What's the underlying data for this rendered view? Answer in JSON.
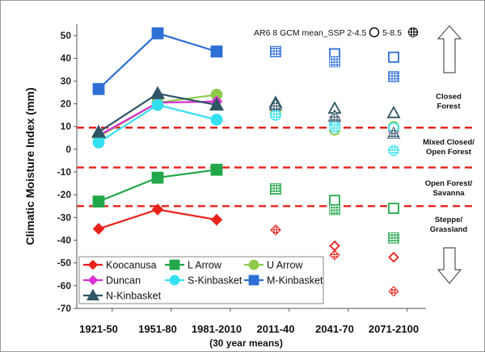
{
  "chart_data": {
    "type": "line",
    "ylabel": "Climatic  Moisture  Index  (mm)",
    "xsublabel": "(30 year means)",
    "categories": [
      "1921-50",
      "1951-80",
      "1981-2010",
      "2011-40",
      "2041-70",
      "2071-2100"
    ],
    "ylim": [
      -70,
      55
    ],
    "yticks": [
      -70,
      -60,
      -50,
      -40,
      -30,
      -20,
      -10,
      0,
      10,
      20,
      30,
      40,
      50
    ],
    "thresholds": [
      9.5,
      -8,
      -25
    ],
    "zones": [
      {
        "lines": [
          "Closed",
          "Forest"
        ],
        "y": 21
      },
      {
        "lines": [
          "Mixed Closed/",
          "Open Forest"
        ],
        "y": 1
      },
      {
        "lines": [
          "Open Forest/",
          "Savanna"
        ],
        "y": -17
      },
      {
        "lines": [
          "Steppe/",
          "Grassland"
        ],
        "y": -33
      }
    ],
    "scenario_text": {
      "prefix": "AR6 8 GCM mean_SSP 2-4.5",
      "second": "5-8.5"
    },
    "series": [
      {
        "name": "Koocanusa",
        "color": "#e8221b",
        "marker": "diamond",
        "observed": [
          -35,
          -26.5,
          -31
        ],
        "ssp245": [
          null,
          null,
          null,
          -35.5,
          -42.5,
          -47.5
        ],
        "ssp585": [
          null,
          null,
          null,
          -35.5,
          -46.5,
          -62.5
        ]
      },
      {
        "name": "L Arrow",
        "color": "#22a84a",
        "marker": "square",
        "observed": [
          -23,
          -12.5,
          -9
        ],
        "ssp245": [
          null,
          null,
          null,
          -17.5,
          -22.5,
          -26
        ],
        "ssp585": [
          null,
          null,
          null,
          -17.5,
          -26.5,
          -39
        ]
      },
      {
        "name": "U Arrow",
        "color": "#8fca4a",
        "marker": "circle",
        "observed": [
          5.5,
          20.5,
          24
        ],
        "ssp245": [
          null,
          null,
          null,
          16.5,
          8.5,
          10
        ],
        "ssp585": [
          null,
          null,
          null,
          16.5,
          10,
          8.5
        ]
      },
      {
        "name": "Duncan",
        "color": "#d930d2",
        "marker": "diamond",
        "observed": [
          6,
          20.5,
          21
        ],
        "ssp245": [
          null,
          null,
          null,
          17.5,
          14,
          8.5
        ],
        "ssp585": [
          null,
          null,
          null,
          17.5,
          12,
          7.5
        ]
      },
      {
        "name": "S-Kinbasket",
        "color": "#33e0ef",
        "marker": "circle",
        "observed": [
          3,
          19.5,
          13
        ],
        "ssp245": [
          null,
          null,
          null,
          15,
          10.5,
          9.5
        ],
        "ssp585": [
          null,
          null,
          null,
          15,
          9.5,
          -0.5
        ]
      },
      {
        "name": "M-Kinbasket",
        "color": "#2e6fd6",
        "marker": "square",
        "observed": [
          26.5,
          51,
          43
        ],
        "ssp245": [
          null,
          null,
          null,
          43,
          42,
          40.5
        ],
        "ssp585": [
          null,
          null,
          null,
          43,
          38.5,
          32
        ]
      },
      {
        "name": "N-Kinbasket",
        "color": "#2f5566",
        "marker": "triangle",
        "observed": [
          7.5,
          24.5,
          19.5
        ],
        "ssp245": [
          null,
          null,
          null,
          20.5,
          18,
          16
        ],
        "ssp585": [
          null,
          null,
          null,
          19.5,
          14.5,
          7
        ]
      }
    ]
  }
}
